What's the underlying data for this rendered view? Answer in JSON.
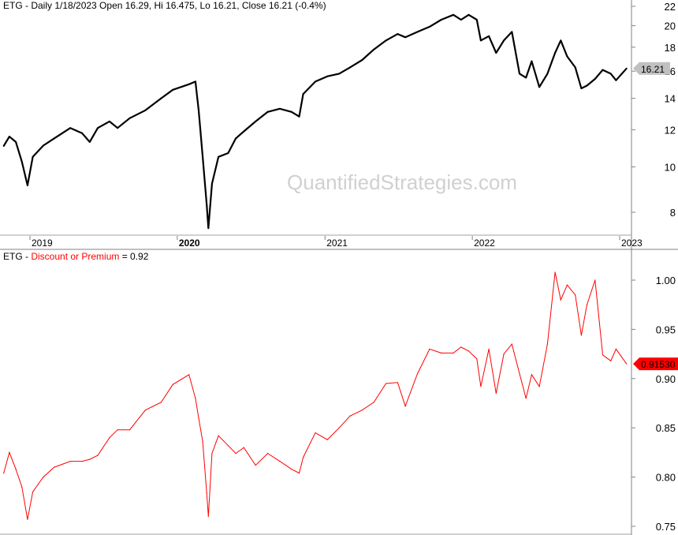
{
  "top_header": {
    "text": "ETG - Daily 1/18/2023 Open 16.29, Hi 16.475, Lo 16.21, Close 16.21 (-0.4%)"
  },
  "bottom_header": {
    "prefix": "ETG - ",
    "indicator": "Discount or Premium",
    "suffix": " = 0.92"
  },
  "watermark": "QuantifiedStrategies.com",
  "colors": {
    "price": "#000000",
    "discount": "#ff0000",
    "price_label_bg": "#c0c0c0",
    "discount_label_bg": "#ff0000"
  },
  "chart_data": [
    {
      "type": "line",
      "title": "ETG - Daily",
      "y_scale": "log",
      "ylim": [
        7,
        23
      ],
      "y_ticks": [
        "8",
        "10",
        "12",
        "14",
        "16",
        "18",
        "20",
        "22"
      ],
      "last_value_label": "16.21",
      "x_ticks": [
        "2019",
        "2020",
        "2021",
        "2022",
        "2023"
      ],
      "grid": false,
      "series": [
        {
          "name": "ETG",
          "color": "#000000"
        }
      ]
    },
    {
      "type": "line",
      "title": "Discount or Premium",
      "y_scale": "linear",
      "ylim": [
        0.745,
        1.02
      ],
      "y_ticks": [
        "0.75",
        "0.80",
        "0.85",
        "0.90",
        "0.95",
        "1.00"
      ],
      "last_value_label": "0.91530",
      "grid": false,
      "series": [
        {
          "name": "Discount or Premium",
          "color": "#ff0000"
        }
      ]
    }
  ],
  "dates": [
    "2018-10-28",
    "2018-11-11",
    "2018-11-27",
    "2018-12-12",
    "2018-12-26",
    "2019-01-08",
    "2019-02-03",
    "2019-03-02",
    "2019-04-11",
    "2019-05-10",
    "2019-05-29",
    "2019-06-18",
    "2019-07-17",
    "2019-08-06",
    "2019-09-05",
    "2019-10-14",
    "2019-11-22",
    "2019-12-21",
    "2020-01-30",
    "2020-02-15",
    "2020-02-23",
    "2020-03-04",
    "2020-03-14",
    "2020-03-18",
    "2020-03-27",
    "2020-04-12",
    "2020-05-06",
    "2020-05-25",
    "2020-06-14",
    "2020-07-13",
    "2020-08-12",
    "2020-09-11",
    "2020-10-10",
    "2020-10-29",
    "2020-11-08",
    "2020-12-08",
    "2021-01-07",
    "2021-02-05",
    "2021-03-04",
    "2021-04-03",
    "2021-05-02",
    "2021-06-01",
    "2021-06-30",
    "2021-07-19",
    "2021-08-18",
    "2021-09-17",
    "2021-10-16",
    "2021-11-15",
    "2021-12-04",
    "2021-12-23",
    "2022-01-12",
    "2022-01-22",
    "2022-02-11",
    "2022-03-01",
    "2022-03-20",
    "2022-04-09",
    "2022-04-28",
    "2022-05-14",
    "2022-05-28",
    "2022-06-16",
    "2022-07-06",
    "2022-07-25",
    "2022-08-08",
    "2022-08-24",
    "2022-09-13",
    "2022-09-28",
    "2022-10-12",
    "2022-11-01",
    "2022-11-20",
    "2022-12-10",
    "2022-12-23",
    "2023-01-18"
  ],
  "price": [
    11.08,
    11.6,
    11.3,
    10.25,
    9.13,
    10.5,
    11.1,
    11.5,
    12.1,
    11.8,
    11.3,
    12.1,
    12.5,
    12.1,
    12.7,
    13.2,
    14.0,
    14.6,
    15.0,
    15.2,
    13.2,
    10.5,
    8.3,
    7.4,
    9.2,
    10.5,
    10.7,
    11.5,
    11.9,
    12.5,
    13.1,
    13.3,
    13.1,
    12.8,
    14.3,
    15.2,
    15.6,
    15.8,
    16.3,
    16.9,
    17.8,
    18.6,
    19.2,
    18.9,
    19.4,
    19.9,
    20.6,
    21.1,
    20.6,
    21.1,
    20.6,
    18.6,
    19.0,
    17.5,
    18.6,
    19.4,
    15.8,
    15.5,
    16.8,
    14.8,
    15.8,
    17.5,
    18.6,
    17.2,
    16.3,
    14.7,
    14.9,
    15.4,
    16.1,
    15.8,
    15.3,
    16.21
  ],
  "discount": [
    0.804,
    0.825,
    0.808,
    0.79,
    0.757,
    0.785,
    0.8,
    0.81,
    0.816,
    0.816,
    0.818,
    0.822,
    0.84,
    0.848,
    0.848,
    0.868,
    0.876,
    0.894,
    0.904,
    0.88,
    0.86,
    0.836,
    0.784,
    0.76,
    0.824,
    0.842,
    0.832,
    0.824,
    0.83,
    0.812,
    0.824,
    0.816,
    0.808,
    0.804,
    0.82,
    0.845,
    0.838,
    0.85,
    0.862,
    0.868,
    0.876,
    0.895,
    0.896,
    0.872,
    0.905,
    0.93,
    0.926,
    0.926,
    0.932,
    0.928,
    0.92,
    0.892,
    0.93,
    0.885,
    0.925,
    0.935,
    0.905,
    0.88,
    0.904,
    0.892,
    0.935,
    1.008,
    0.98,
    0.995,
    0.985,
    0.944,
    0.975,
    1.0,
    0.924,
    0.918,
    0.93,
    0.915
  ]
}
